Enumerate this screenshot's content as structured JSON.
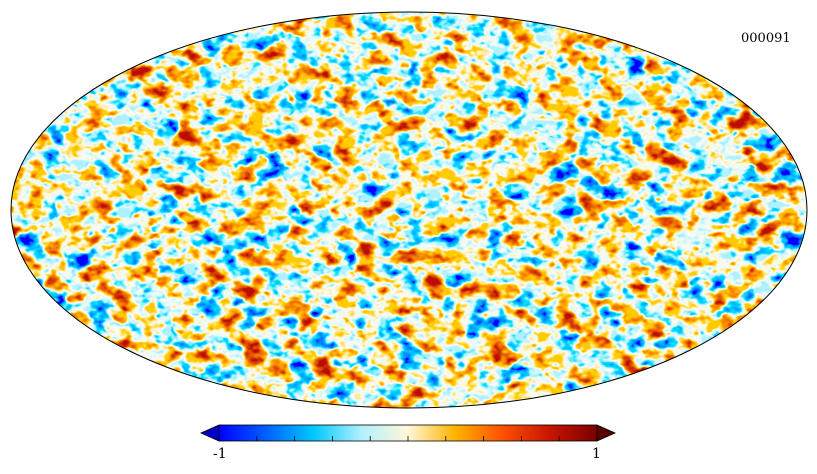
{
  "map": {
    "identifier": "000091",
    "projection": "mollweide",
    "colormap": [
      "#0000ff",
      "#0060ff",
      "#00c8ff",
      "#b0f0ff",
      "#fff8d8",
      "#ffb300",
      "#ff5000",
      "#c81400",
      "#7a0000"
    ],
    "background_color": "#ffffff"
  },
  "colorbar": {
    "min_label": "-1",
    "max_label": "1",
    "ticks": [
      -1,
      -0.8,
      -0.6,
      -0.4,
      -0.2,
      0,
      0.2,
      0.4,
      0.6,
      0.8,
      1
    ]
  }
}
